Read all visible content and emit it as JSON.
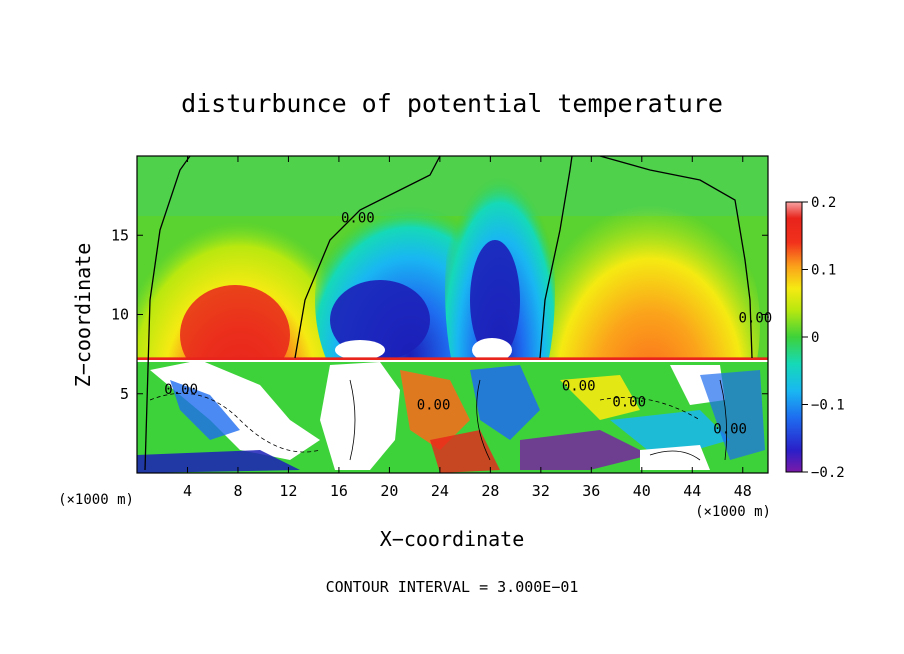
{
  "chart_data": {
    "type": "heatmap",
    "title": "disturbunce of potential temperature",
    "xlabel": "X−coordinate",
    "ylabel": "Z−coordinate",
    "x_unit_left": "(×1000 m)",
    "x_unit_right": "(×1000 m)",
    "footer": "CONTOUR INTERVAL = 3.000E−01",
    "xlim": [
      0,
      50
    ],
    "ylim": [
      0,
      20
    ],
    "xticks": [
      4,
      8,
      12,
      16,
      20,
      24,
      28,
      32,
      36,
      40,
      44,
      48
    ],
    "yticks": [
      5,
      10,
      15
    ],
    "colorbar": {
      "min": -0.2,
      "max": 0.2,
      "tick_values": [
        0.2,
        0.1,
        0,
        -0.1,
        -0.2
      ],
      "tick_labels": [
        "0.2",
        "0.1",
        "0",
        "−0.1",
        "−0.2"
      ]
    },
    "contour_labels": [
      {
        "text": "0.00",
        "x": 17.5,
        "y": 15.8
      },
      {
        "text": "0.00",
        "x": 49.0,
        "y": 9.5
      },
      {
        "text": "0.00",
        "x": 3.5,
        "y": 5.0
      },
      {
        "text": "0.00",
        "x": 23.5,
        "y": 4.0
      },
      {
        "text": "0.00",
        "x": 35.0,
        "y": 5.2
      },
      {
        "text": "0.00",
        "x": 39.0,
        "y": 4.2
      },
      {
        "text": "0.00",
        "x": 47.0,
        "y": 2.5
      }
    ],
    "boundary_layer_top_z": 7.2,
    "grid": false,
    "legend": "right"
  }
}
